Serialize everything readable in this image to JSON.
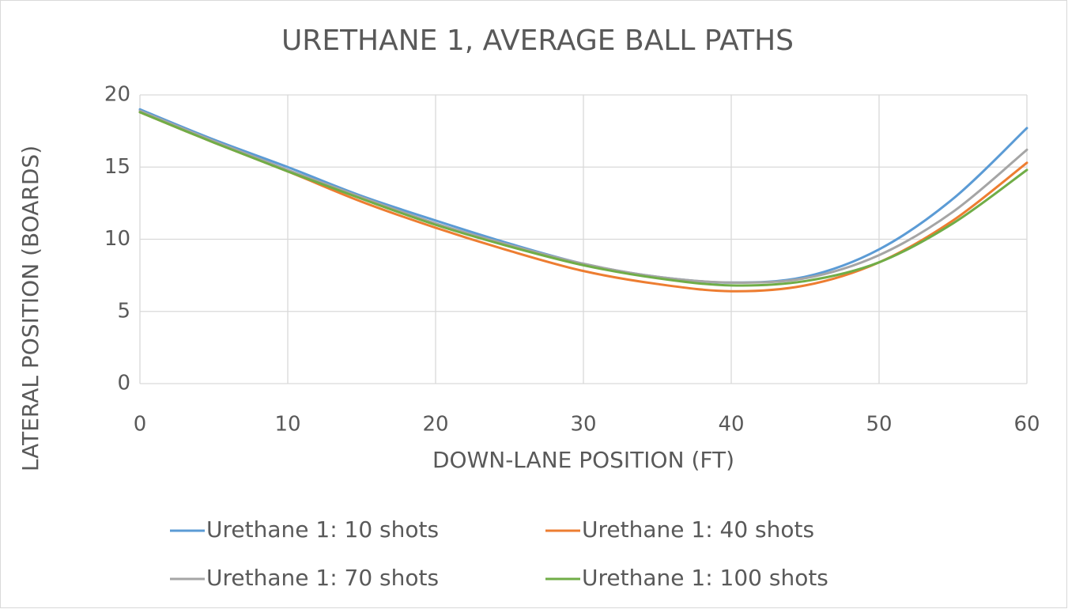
{
  "chart_data": {
    "type": "line",
    "title": "URETHANE 1, AVERAGE BALL PATHS",
    "x_label": "DOWN-LANE POSITION (FT)",
    "y_label": "LATERAL POSITION (BOARDS)",
    "x": [
      0,
      5,
      10,
      15,
      20,
      25,
      30,
      35,
      40,
      45,
      50,
      55,
      60
    ],
    "series": [
      {
        "name": "Urethane 1: 10 shots",
        "color": "#5b9bd5",
        "values": [
          19.0,
          16.9,
          15.0,
          13.0,
          11.3,
          9.7,
          8.3,
          7.4,
          7.0,
          7.4,
          9.3,
          12.8,
          17.7
        ]
      },
      {
        "name": "Urethane 1: 40 shots",
        "color": "#ed7d31",
        "values": [
          18.8,
          16.7,
          14.7,
          12.6,
          10.8,
          9.2,
          7.8,
          6.9,
          6.4,
          6.8,
          8.4,
          11.3,
          15.3
        ]
      },
      {
        "name": "Urethane 1: 70 shots",
        "color": "#a5a5a5",
        "values": [
          18.9,
          16.8,
          14.8,
          12.9,
          11.1,
          9.6,
          8.3,
          7.4,
          7.0,
          7.3,
          8.9,
          11.9,
          16.2
        ]
      },
      {
        "name": "Urethane 1: 100 shots",
        "color": "#70ad47",
        "values": [
          18.8,
          16.7,
          14.7,
          12.8,
          11.0,
          9.5,
          8.2,
          7.3,
          6.8,
          7.1,
          8.4,
          11.1,
          14.8
        ]
      }
    ],
    "xlim": [
      0,
      60
    ],
    "xticks": [
      0,
      10,
      20,
      30,
      40,
      50,
      60
    ],
    "ylim": [
      0,
      20
    ],
    "yticks": [
      0,
      5,
      10,
      15,
      20
    ],
    "grid": true,
    "legend": "bottom",
    "smooth": true
  }
}
